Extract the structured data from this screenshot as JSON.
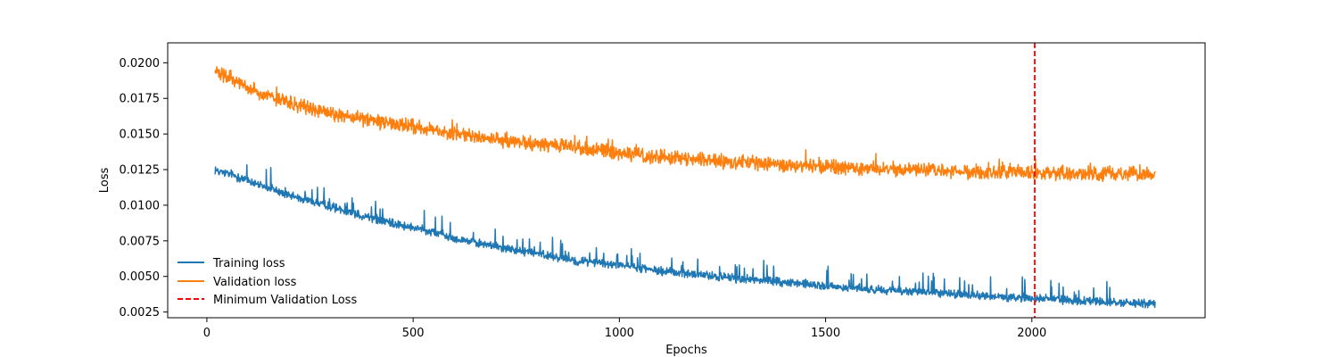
{
  "chart_data": {
    "type": "line",
    "title": "",
    "xlabel": "Epochs",
    "ylabel": "Loss",
    "xlim": [
      -95,
      2420
    ],
    "ylim": [
      0.0021,
      0.0214
    ],
    "xticks": [
      0,
      500,
      1000,
      1500,
      2000
    ],
    "xtick_labels": [
      "0",
      "500",
      "1000",
      "1500",
      "2000"
    ],
    "yticks": [
      0.0025,
      0.005,
      0.0075,
      0.01,
      0.0125,
      0.015,
      0.0175,
      0.02
    ],
    "ytick_labels": [
      "0.0025",
      "0.0050",
      "0.0075",
      "0.0100",
      "0.0125",
      "0.0150",
      "0.0175",
      "0.0200"
    ],
    "grid": false,
    "legend_position": "lower-left",
    "x_start": 20,
    "x_end": 2300,
    "series": [
      {
        "name": "Training loss",
        "color": "#1f77b4",
        "style": "solid",
        "x": [
          20,
          50,
          100,
          150,
          200,
          300,
          400,
          500,
          600,
          700,
          800,
          900,
          1000,
          1100,
          1200,
          1300,
          1400,
          1500,
          1600,
          1700,
          1800,
          1900,
          2000,
          2100,
          2200,
          2300
        ],
        "y": [
          0.0125,
          0.0122,
          0.0117,
          0.0112,
          0.0107,
          0.0099,
          0.0091,
          0.0084,
          0.0077,
          0.0071,
          0.0066,
          0.0061,
          0.0058,
          0.0054,
          0.0051,
          0.0048,
          0.0046,
          0.0043,
          0.0041,
          0.004,
          0.0038,
          0.0036,
          0.0035,
          0.0033,
          0.0032,
          0.0031
        ],
        "noise": 0.00035,
        "spike_probability": 0.06,
        "spike_size": 0.0014
      },
      {
        "name": "Validation loss",
        "color": "#ff7f0e",
        "style": "solid",
        "x": [
          20,
          50,
          100,
          150,
          200,
          300,
          400,
          500,
          600,
          700,
          800,
          900,
          1000,
          1100,
          1200,
          1300,
          1400,
          1500,
          1600,
          1700,
          1800,
          1900,
          2000,
          2100,
          2200,
          2300
        ],
        "y": [
          0.0194,
          0.019,
          0.0183,
          0.0177,
          0.0172,
          0.0164,
          0.0159,
          0.0155,
          0.015,
          0.0146,
          0.0143,
          0.014,
          0.0137,
          0.0134,
          0.0132,
          0.013,
          0.0128,
          0.0127,
          0.0126,
          0.0125,
          0.0124,
          0.0123,
          0.0123,
          0.0122,
          0.0122,
          0.0122
        ],
        "noise": 0.0006,
        "spike_probability": 0.02,
        "spike_size": 0.0008
      }
    ],
    "vline": {
      "name": "Minimum Validation Loss",
      "x": 2007,
      "color": "#ff0000",
      "style": "dashed"
    }
  }
}
